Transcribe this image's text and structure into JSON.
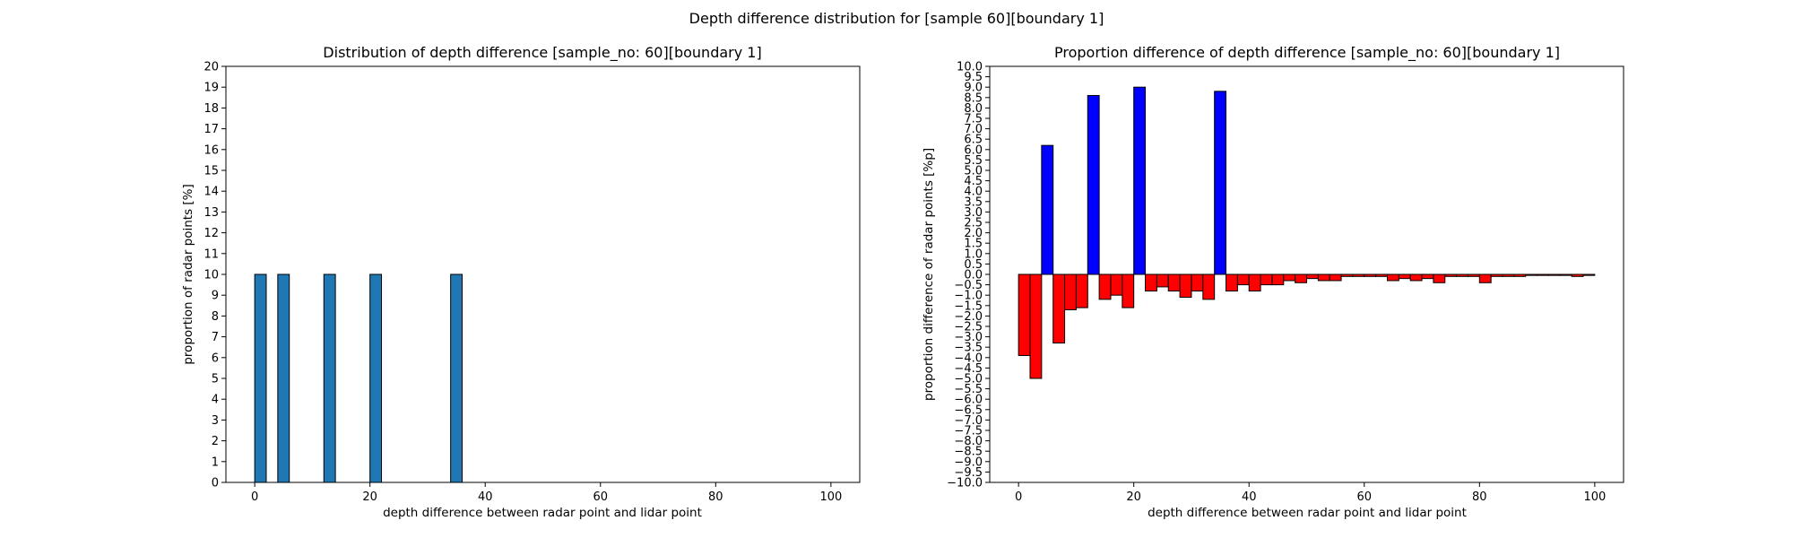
{
  "figure": {
    "suptitle": "Depth difference distribution for [sample 60][boundary 1]"
  },
  "chart_data": [
    {
      "type": "bar",
      "title": "Distribution of depth difference [sample_no: 60][boundary 1]",
      "xlabel": "depth difference between radar point and lidar point",
      "ylabel": "proportion of radar points [%]",
      "xlim": [
        -5,
        105
      ],
      "ylim": [
        0,
        20
      ],
      "xticks": [
        0,
        20,
        40,
        60,
        80,
        100
      ],
      "yticks": [
        0,
        1,
        2,
        3,
        4,
        5,
        6,
        7,
        8,
        9,
        10,
        11,
        12,
        13,
        14,
        15,
        16,
        17,
        18,
        19,
        20
      ],
      "bar_width": 2,
      "bar_color": "#1f77b4",
      "edge_color": "#000000",
      "grid": false,
      "series": [
        {
          "x": [
            1,
            5,
            13,
            21,
            35
          ],
          "values": [
            10,
            10,
            10,
            10,
            10
          ]
        }
      ]
    },
    {
      "type": "bar",
      "title": "Proportion difference of depth difference [sample_no: 60][boundary 1]",
      "xlabel": "depth difference between radar point and lidar point",
      "ylabel": "proportion difference of radar points [%p]",
      "xlim": [
        -5,
        105
      ],
      "ylim": [
        -10,
        10
      ],
      "xticks": [
        0,
        20,
        40,
        60,
        80,
        100
      ],
      "yticks": [
        -10.0,
        -9.5,
        -9.0,
        -8.5,
        -8.0,
        -7.5,
        -7.0,
        -6.5,
        -6.0,
        -5.5,
        -5.0,
        -4.5,
        -4.0,
        -3.5,
        -3.0,
        -2.5,
        -2.0,
        -1.5,
        -1.0,
        -0.5,
        0.0,
        0.5,
        1.0,
        1.5,
        2.0,
        2.5,
        3.0,
        3.5,
        4.0,
        4.5,
        5.0,
        5.5,
        6.0,
        6.5,
        7.0,
        7.5,
        8.0,
        8.5,
        9.0,
        9.5,
        10.0
      ],
      "bar_width": 2,
      "positive_color": "#0000ff",
      "negative_color": "#ff0000",
      "edge_color": "#000000",
      "grid": false,
      "series": [
        {
          "x": [
            1,
            3,
            5,
            7,
            9,
            11,
            13,
            15,
            17,
            19,
            21,
            23,
            25,
            27,
            29,
            31,
            33,
            35,
            37,
            39,
            41,
            43,
            45,
            47,
            49,
            51,
            53,
            55,
            57,
            59,
            61,
            63,
            65,
            67,
            69,
            71,
            73,
            75,
            77,
            79,
            81,
            83,
            85,
            87,
            89,
            91,
            93,
            95,
            97,
            99
          ],
          "values": [
            -3.9,
            -5.0,
            6.2,
            -3.3,
            -1.7,
            -1.6,
            8.6,
            -1.2,
            -1.0,
            -1.6,
            9.0,
            -0.8,
            -0.6,
            -0.8,
            -1.1,
            -0.8,
            -1.2,
            8.8,
            -0.8,
            -0.5,
            -0.8,
            -0.5,
            -0.5,
            -0.3,
            -0.4,
            -0.2,
            -0.3,
            -0.3,
            -0.1,
            -0.1,
            -0.1,
            -0.1,
            -0.3,
            -0.2,
            -0.3,
            -0.2,
            -0.4,
            -0.1,
            -0.1,
            -0.1,
            -0.4,
            -0.1,
            -0.1,
            -0.1,
            -0.05,
            -0.05,
            -0.05,
            -0.05,
            -0.1,
            -0.05
          ]
        }
      ]
    }
  ]
}
